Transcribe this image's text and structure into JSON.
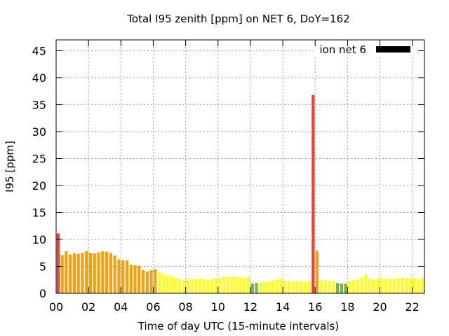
{
  "chart_data": {
    "type": "bar",
    "title": "Total I95 zenith [ppm] on NET 6, DoY=162",
    "xlabel": "Time of day UTC (15-minute intervals)",
    "ylabel": "I95 [ppm]",
    "ylim": [
      0,
      47
    ],
    "xlim": [
      0,
      22.75
    ],
    "yticks": [
      "0",
      "5",
      "10",
      "15",
      "20",
      "25",
      "30",
      "35",
      "40",
      "45"
    ],
    "xticks": [
      "00",
      "02",
      "04",
      "06",
      "08",
      "10",
      "12",
      "14",
      "16",
      "18",
      "20",
      "22"
    ],
    "grid": true,
    "legend": {
      "label": "ion net 6",
      "position": "top-right",
      "swatch_color": "#000000"
    },
    "colors": {
      "red": "#e8403c",
      "orange": "#f5a00f",
      "yellow": "#ffff1e",
      "green": "#78b43c"
    },
    "bin_width_hours": 0.25,
    "values": [
      11.1,
      7.1,
      7.8,
      7.2,
      7.4,
      7.3,
      7.5,
      7.8,
      7.5,
      7.4,
      7.6,
      7.8,
      7.7,
      7.5,
      7.0,
      6.3,
      6.1,
      6.1,
      5.3,
      5.2,
      5.1,
      4.3,
      4.1,
      4.3,
      4.5,
      3.9,
      3.5,
      3.3,
      3.2,
      2.8,
      2.6,
      2.5,
      2.6,
      2.6,
      2.6,
      2.7,
      2.6,
      2.5,
      2.6,
      2.7,
      2.9,
      3.1,
      3.0,
      3.0,
      3.1,
      2.9,
      2.9,
      3.0,
      1.8,
      1.9,
      2.0,
      2.1,
      2.2,
      2.3,
      2.5,
      2.7,
      2.4,
      2.3,
      2.2,
      2.3,
      2.3,
      2.1,
      2.3,
      36.8,
      7.9,
      2.4,
      2.4,
      2.3,
      2.2,
      1.9,
      1.8,
      1.8,
      2.2,
      2.4,
      2.6,
      3.0,
      3.5,
      2.7,
      2.5,
      2.7,
      2.8,
      2.7,
      2.6,
      2.8,
      2.8,
      2.9,
      2.9,
      2.8,
      2.7,
      2.6,
      2.8
    ],
    "bar_colors": [
      "red",
      "orange",
      "orange",
      "orange",
      "orange",
      "orange",
      "orange",
      "orange",
      "orange",
      "orange",
      "orange",
      "orange",
      "orange",
      "orange",
      "orange",
      "orange",
      "orange",
      "orange",
      "orange",
      "orange",
      "orange",
      "orange",
      "orange",
      "orange",
      "orange",
      "yellow",
      "yellow",
      "yellow",
      "yellow",
      "yellow",
      "yellow",
      "yellow",
      "yellow",
      "yellow",
      "yellow",
      "yellow",
      "yellow",
      "yellow",
      "yellow",
      "yellow",
      "yellow",
      "yellow",
      "yellow",
      "yellow",
      "yellow",
      "yellow",
      "yellow",
      "yellow",
      "green",
      "green",
      "yellow",
      "yellow",
      "yellow",
      "yellow",
      "yellow",
      "yellow",
      "yellow",
      "yellow",
      "yellow",
      "yellow",
      "yellow",
      "yellow",
      "yellow",
      "red",
      "orange",
      "yellow",
      "yellow",
      "yellow",
      "yellow",
      "green",
      "green",
      "green",
      "yellow",
      "yellow",
      "yellow",
      "yellow",
      "yellow",
      "yellow",
      "yellow",
      "yellow",
      "yellow",
      "yellow",
      "yellow",
      "yellow",
      "yellow",
      "yellow",
      "yellow",
      "yellow",
      "yellow",
      "yellow",
      "yellow"
    ]
  }
}
